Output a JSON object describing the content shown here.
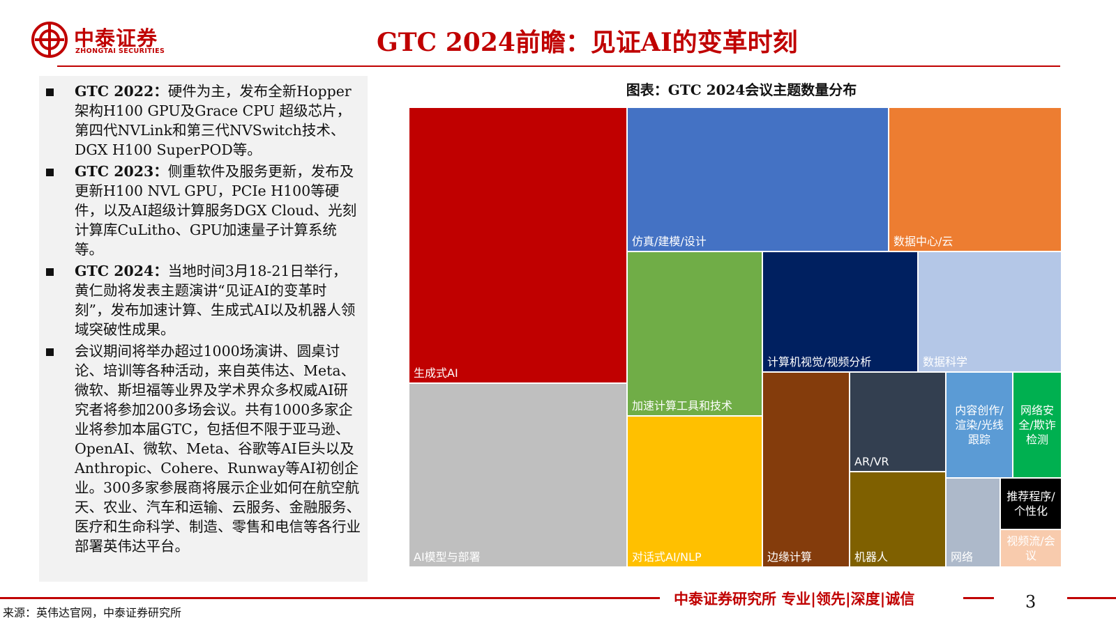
{
  "brand": {
    "name_cn": "中泰证券",
    "name_en": "ZHONGTAI SECURITIES",
    "color": "#c00000"
  },
  "page_title": "GTC 2024前瞻：见证AI的变革时刻",
  "left_panel": {
    "items": [
      {
        "lead": "GTC 2022",
        "sep": "：",
        "text": "硬件为主，发布全新Hopper架构H100 GPU及Grace CPU 超级芯片，第四代NVLink和第三代NVSwitch技术、DGX H100 SuperPOD等。"
      },
      {
        "lead": "GTC 2023",
        "sep": "：",
        "text": "侧重软件及服务更新，发布及更新H100 NVL GPU，PCIe H100等硬件，以及AI超级计算服务DGX Cloud、光刻计算库CuLitho、GPU加速量子计算系统等。"
      },
      {
        "lead": "GTC 2024",
        "sep": "：",
        "text": "当地时间3月18-21日举行，黄仁勋将发表主题演讲“见证AI的变革时刻”，发布加速计算、生成式AI以及机器人领域突破性成果。"
      },
      {
        "lead": "",
        "sep": "",
        "text": "会议期间将举办超过1000场演讲、圆桌讨论、培训等各种活动，来自英伟达、Meta、微软、斯坦福等业界及学术界众多权威AI研究者将参加200多场会议。共有1000多家企业将参加本届GTC，包括但不限于亚马逊、OpenAI、微软、Meta、谷歌等AI巨头以及Anthropic、Cohere、Runway等AI初创企业。300多家参展商将展示企业如何在航空航天、农业、汽车和运输、云服务、金融服务、医疗和生命科学、制造、零售和电信等各行业部署英伟达平台。"
      }
    ]
  },
  "chart_title": "图表：GTC 2024会议主题数量分布",
  "chart_data": {
    "type": "treemap",
    "title": "图表：GTC 2024会议主题数量分布",
    "values_estimated_from_area": true,
    "nodes": [
      {
        "label": "生成式AI",
        "value": 200,
        "color": "#c00000",
        "text_color": "#ffffff"
      },
      {
        "label": "AI模型与部署",
        "value": 135,
        "color": "#bfbfbf",
        "text_color": "#ffffff"
      },
      {
        "label": "仿真/建模/设计",
        "value": 118,
        "color": "#4472c4",
        "text_color": "#ffffff"
      },
      {
        "label": "数据中心/云",
        "value": 78,
        "color": "#ed7d31",
        "text_color": "#ffffff"
      },
      {
        "label": "加速计算工具和技术",
        "value": 69,
        "color": "#70ad47",
        "text_color": "#ffffff"
      },
      {
        "label": "对话式AI/NLP",
        "value": 64,
        "color": "#ffc000",
        "text_color": "#ffffff"
      },
      {
        "label": "计算机视觉/视频分析",
        "value": 58,
        "color": "#002060",
        "text_color": "#ffffff"
      },
      {
        "label": "数据科学",
        "value": 53,
        "color": "#b4c7e7",
        "text_color": "#ffffff"
      },
      {
        "label": "边缘计算",
        "value": 43,
        "color": "#843c0c",
        "text_color": "#ffffff"
      },
      {
        "label": "AR/VR",
        "value": 29,
        "color": "#333f50",
        "text_color": "#ffffff"
      },
      {
        "label": "机器人",
        "value": 28,
        "color": "#7f6000",
        "text_color": "#ffffff"
      },
      {
        "label": "内容创作/渲染/光线跟踪",
        "value": 22,
        "color": "#5b9bd5",
        "text_color": "#ffffff"
      },
      {
        "label": "网络安全/欺诈检测",
        "value": 16,
        "color": "#00b050",
        "text_color": "#ffffff"
      },
      {
        "label": "网络",
        "value": 17,
        "color": "#adb9ca",
        "text_color": "#ffffff"
      },
      {
        "label": "推荐程序/个性化",
        "value": 8,
        "color": "#000000",
        "text_color": "#ffffff"
      },
      {
        "label": "视频流/会议",
        "value": 5,
        "color": "#f8cbad",
        "text_color": "#ffffff"
      }
    ]
  },
  "footer": {
    "slogan": "中泰证券研究所 专业|领先|深度|诚信",
    "page_number": "3",
    "source": "来源：英伟达官网，中泰证券研究所"
  }
}
